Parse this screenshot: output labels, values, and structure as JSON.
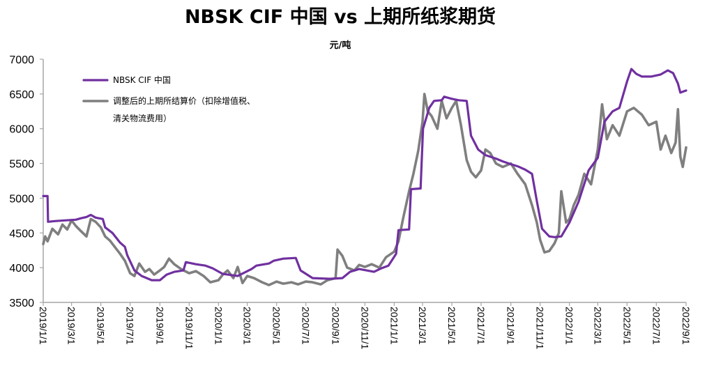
{
  "chart_data": {
    "type": "line",
    "title": "NBSK CIF 中国 vs 上期所纸浆期货",
    "unit_label": "元/吨",
    "ylim": [
      3500,
      7000
    ],
    "y_ticks": [
      "7000",
      "6500",
      "6000",
      "5500",
      "5000",
      "4500",
      "4000",
      "3500"
    ],
    "x_ticks": [
      "2019/1/1",
      "2019/3/1",
      "2019/5/1",
      "2019/7/1",
      "2019/9/1",
      "2019/11/1",
      "2020/1/1",
      "2020/3/1",
      "2020/5/1",
      "2020/7/1",
      "2020/9/1",
      "2020/11/1",
      "2021/1/1",
      "2021/3/1",
      "2021/5/1",
      "2021/7/1",
      "2021/9/1",
      "2021/11/1",
      "2022/1/1",
      "2022/3/1",
      "2022/5/1",
      "2022/7/1",
      "2022/9/1"
    ],
    "grid": false,
    "legend_position": "top-left",
    "series": [
      {
        "name": "NBSK CIF 中国",
        "legend_lines": [
          "NBSK CIF 中国"
        ],
        "color": "#7030a0",
        "points": [
          [
            "2019/1/1",
            5030
          ],
          [
            "2019/1/10",
            5030
          ],
          [
            "2019/1/11",
            4660
          ],
          [
            "2019/1/25",
            4670
          ],
          [
            "2019/2/15",
            4680
          ],
          [
            "2019/3/10",
            4690
          ],
          [
            "2019/3/20",
            4710
          ],
          [
            "2019/4/1",
            4730
          ],
          [
            "2019/4/10",
            4760
          ],
          [
            "2019/4/20",
            4720
          ],
          [
            "2019/5/5",
            4700
          ],
          [
            "2019/5/10",
            4580
          ],
          [
            "2019/5/25",
            4500
          ],
          [
            "2019/6/10",
            4360
          ],
          [
            "2019/6/20",
            4300
          ],
          [
            "2019/6/25",
            4180
          ],
          [
            "2019/7/10",
            3960
          ],
          [
            "2019/7/25",
            3880
          ],
          [
            "2019/8/15",
            3820
          ],
          [
            "2019/9/1",
            3820
          ],
          [
            "2019/9/15",
            3900
          ],
          [
            "2019/10/1",
            3940
          ],
          [
            "2019/10/20",
            3960
          ],
          [
            "2019/10/25",
            4080
          ],
          [
            "2019/11/15",
            4050
          ],
          [
            "2019/12/5",
            4030
          ],
          [
            "2019/12/20",
            3990
          ],
          [
            "2020/1/10",
            3910
          ],
          [
            "2020/2/10",
            3880
          ],
          [
            "2020/3/10",
            3980
          ],
          [
            "2020/3/20",
            4030
          ],
          [
            "2020/4/15",
            4060
          ],
          [
            "2020/4/25",
            4100
          ],
          [
            "2020/5/15",
            4130
          ],
          [
            "2020/6/10",
            4140
          ],
          [
            "2020/6/20",
            3960
          ],
          [
            "2020/7/15",
            3850
          ],
          [
            "2020/8/20",
            3840
          ],
          [
            "2020/9/15",
            3850
          ],
          [
            "2020/10/1",
            3940
          ],
          [
            "2020/10/20",
            3980
          ],
          [
            "2020/11/20",
            3940
          ],
          [
            "2020/12/5",
            3990
          ],
          [
            "2020/12/20",
            4030
          ],
          [
            "2021/1/5",
            4200
          ],
          [
            "2021/1/10",
            4540
          ],
          [
            "2021/2/1",
            4550
          ],
          [
            "2021/2/5",
            5130
          ],
          [
            "2021/2/25",
            5140
          ],
          [
            "2021/3/2",
            6000
          ],
          [
            "2021/3/15",
            6300
          ],
          [
            "2021/3/25",
            6400
          ],
          [
            "2021/4/10",
            6410
          ],
          [
            "2021/4/15",
            6460
          ],
          [
            "2021/5/1",
            6430
          ],
          [
            "2021/5/15",
            6410
          ],
          [
            "2021/6/1",
            6400
          ],
          [
            "2021/6/10",
            5900
          ],
          [
            "2021/6/25",
            5700
          ],
          [
            "2021/7/10",
            5620
          ],
          [
            "2021/8/1",
            5570
          ],
          [
            "2021/8/15",
            5530
          ],
          [
            "2021/9/1",
            5490
          ],
          [
            "2021/9/15",
            5460
          ],
          [
            "2021/10/1",
            5410
          ],
          [
            "2021/10/15",
            5350
          ],
          [
            "2021/10/25",
            4960
          ],
          [
            "2021/11/5",
            4560
          ],
          [
            "2021/11/20",
            4450
          ],
          [
            "2021/12/1",
            4440
          ],
          [
            "2021/12/15",
            4450
          ],
          [
            "2022/1/1",
            4650
          ],
          [
            "2022/1/20",
            4950
          ],
          [
            "2022/2/10",
            5400
          ],
          [
            "2022/3/1",
            5580
          ],
          [
            "2022/3/15",
            6100
          ],
          [
            "2022/4/1",
            6250
          ],
          [
            "2022/4/15",
            6300
          ],
          [
            "2022/5/1",
            6680
          ],
          [
            "2022/5/10",
            6860
          ],
          [
            "2022/5/20",
            6790
          ],
          [
            "2022/6/1",
            6750
          ],
          [
            "2022/6/20",
            6750
          ],
          [
            "2022/7/10",
            6780
          ],
          [
            "2022/7/25",
            6840
          ],
          [
            "2022/8/5",
            6800
          ],
          [
            "2022/8/15",
            6650
          ],
          [
            "2022/8/20",
            6520
          ],
          [
            "2022/9/1",
            6550
          ]
        ]
      },
      {
        "name": "调整后的上期所结算价（扣除增值税、清关物流费用）",
        "legend_lines": [
          "调整后的上期所结算价（扣除增值税、",
          "清关物流费用）"
        ],
        "color": "#7f7f7f",
        "points": [
          [
            "2019/1/1",
            4340
          ],
          [
            "2019/1/5",
            4450
          ],
          [
            "2019/1/10",
            4380
          ],
          [
            "2019/1/20",
            4560
          ],
          [
            "2019/2/1",
            4480
          ],
          [
            "2019/2/10",
            4620
          ],
          [
            "2019/2/20",
            4550
          ],
          [
            "2019/3/1",
            4680
          ],
          [
            "2019/3/10",
            4600
          ],
          [
            "2019/3/20",
            4530
          ],
          [
            "2019/4/1",
            4450
          ],
          [
            "2019/4/10",
            4700
          ],
          [
            "2019/4/20",
            4660
          ],
          [
            "2019/5/1",
            4580
          ],
          [
            "2019/5/10",
            4450
          ],
          [
            "2019/5/20",
            4390
          ],
          [
            "2019/6/1",
            4280
          ],
          [
            "2019/6/10",
            4200
          ],
          [
            "2019/6/20",
            4100
          ],
          [
            "2019/7/1",
            3920
          ],
          [
            "2019/7/10",
            3880
          ],
          [
            "2019/7/20",
            4060
          ],
          [
            "2019/8/1",
            3940
          ],
          [
            "2019/8/10",
            3980
          ],
          [
            "2019/8/20",
            3900
          ],
          [
            "2019/9/1",
            3960
          ],
          [
            "2019/9/10",
            4010
          ],
          [
            "2019/9/20",
            4130
          ],
          [
            "2019/10/1",
            4050
          ],
          [
            "2019/10/15",
            3980
          ],
          [
            "2019/11/1",
            3920
          ],
          [
            "2019/11/15",
            3950
          ],
          [
            "2019/12/1",
            3880
          ],
          [
            "2019/12/15",
            3790
          ],
          [
            "2020/1/1",
            3820
          ],
          [
            "2020/1/10",
            3900
          ],
          [
            "2020/1/20",
            3960
          ],
          [
            "2020/2/1",
            3850
          ],
          [
            "2020/2/10",
            4010
          ],
          [
            "2020/2/20",
            3780
          ],
          [
            "2020/3/1",
            3880
          ],
          [
            "2020/3/15",
            3850
          ],
          [
            "2020/4/1",
            3790
          ],
          [
            "2020/4/15",
            3750
          ],
          [
            "2020/5/1",
            3800
          ],
          [
            "2020/5/15",
            3770
          ],
          [
            "2020/6/1",
            3790
          ],
          [
            "2020/6/15",
            3760
          ],
          [
            "2020/7/1",
            3800
          ],
          [
            "2020/7/15",
            3790
          ],
          [
            "2020/8/1",
            3760
          ],
          [
            "2020/8/15",
            3820
          ],
          [
            "2020/9/1",
            3850
          ],
          [
            "2020/9/5",
            4260
          ],
          [
            "2020/9/15",
            4170
          ],
          [
            "2020/9/25",
            4000
          ],
          [
            "2020/10/10",
            3960
          ],
          [
            "2020/10/20",
            4040
          ],
          [
            "2020/11/1",
            4010
          ],
          [
            "2020/11/15",
            4050
          ],
          [
            "2020/12/1",
            4000
          ],
          [
            "2020/12/15",
            4150
          ],
          [
            "2021/1/1",
            4230
          ],
          [
            "2021/1/10",
            4380
          ],
          [
            "2021/1/20",
            4720
          ],
          [
            "2021/2/1",
            5100
          ],
          [
            "2021/2/10",
            5350
          ],
          [
            "2021/2/20",
            5680
          ],
          [
            "2021/3/1",
            6100
          ],
          [
            "2021/3/5",
            6500
          ],
          [
            "2021/3/12",
            6250
          ],
          [
            "2021/3/20",
            6180
          ],
          [
            "2021/4/1",
            6000
          ],
          [
            "2021/4/10",
            6400
          ],
          [
            "2021/4/20",
            6150
          ],
          [
            "2021/5/1",
            6300
          ],
          [
            "2021/5/10",
            6400
          ],
          [
            "2021/5/20",
            6050
          ],
          [
            "2021/6/1",
            5550
          ],
          [
            "2021/6/10",
            5380
          ],
          [
            "2021/6/20",
            5300
          ],
          [
            "2021/7/1",
            5400
          ],
          [
            "2021/7/10",
            5700
          ],
          [
            "2021/7/20",
            5650
          ],
          [
            "2021/8/1",
            5500
          ],
          [
            "2021/8/15",
            5450
          ],
          [
            "2021/9/1",
            5500
          ],
          [
            "2021/9/15",
            5350
          ],
          [
            "2021/10/1",
            5200
          ],
          [
            "2021/10/15",
            4900
          ],
          [
            "2021/10/25",
            4650
          ],
          [
            "2021/11/1",
            4400
          ],
          [
            "2021/11/10",
            4220
          ],
          [
            "2021/11/20",
            4240
          ],
          [
            "2021/12/1",
            4350
          ],
          [
            "2021/12/10",
            4500
          ],
          [
            "2021/12/15",
            5100
          ],
          [
            "2021/12/25",
            4650
          ],
          [
            "2022/1/1",
            4700
          ],
          [
            "2022/1/10",
            4900
          ],
          [
            "2022/1/20",
            5050
          ],
          [
            "2022/2/1",
            5350
          ],
          [
            "2022/2/15",
            5200
          ],
          [
            "2022/3/1",
            5700
          ],
          [
            "2022/3/10",
            6350
          ],
          [
            "2022/3/20",
            5850
          ],
          [
            "2022/4/1",
            6050
          ],
          [
            "2022/4/15",
            5900
          ],
          [
            "2022/5/1",
            6250
          ],
          [
            "2022/5/15",
            6300
          ],
          [
            "2022/6/1",
            6200
          ],
          [
            "2022/6/15",
            6050
          ],
          [
            "2022/7/1",
            6100
          ],
          [
            "2022/7/10",
            5700
          ],
          [
            "2022/7/20",
            5900
          ],
          [
            "2022/8/1",
            5650
          ],
          [
            "2022/8/10",
            5800
          ],
          [
            "2022/8/15",
            6280
          ],
          [
            "2022/8/20",
            5600
          ],
          [
            "2022/8/25",
            5450
          ],
          [
            "2022/9/1",
            5730
          ]
        ]
      }
    ]
  }
}
